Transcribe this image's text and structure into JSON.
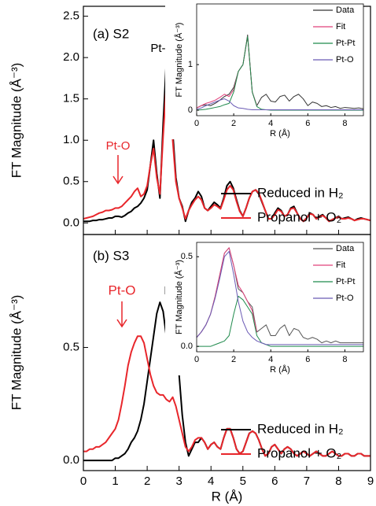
{
  "chart_data": [
    {
      "type": "line",
      "ylabel": "FT Magnitude (Å⁻³)",
      "legend": "right",
      "annotations": [
        {
          "text": "(a) S2",
          "color": "#000000"
        },
        {
          "text": "Pt-Pt",
          "color": "#000000"
        },
        {
          "text": "Pt-O",
          "color": "#e8262b"
        }
      ],
      "x": [
        0,
        0.1,
        0.2,
        0.3,
        0.4,
        0.5,
        0.6,
        0.7,
        0.8,
        0.9,
        1,
        1.1,
        1.2,
        1.3,
        1.4,
        1.5,
        1.6,
        1.7,
        1.8,
        1.9,
        2,
        2.1,
        2.2,
        2.3,
        2.4,
        2.5,
        2.6,
        2.7,
        2.8,
        2.9,
        3,
        3.1,
        3.2,
        3.3,
        3.4,
        3.5,
        3.6,
        3.7,
        3.8,
        3.9,
        4,
        4.1,
        4.2,
        4.3,
        4.4,
        4.5,
        4.6,
        4.7,
        4.8,
        4.9,
        5,
        5.1,
        5.2,
        5.3,
        5.4,
        5.5,
        5.6,
        5.7,
        5.8,
        5.9,
        6,
        6.1,
        6.2,
        6.3,
        6.4,
        6.5,
        6.6,
        6.7,
        6.8,
        6.9,
        7,
        7.1,
        7.2,
        7.3,
        7.4,
        7.5,
        7.6,
        7.7,
        7.8,
        7.9,
        8,
        8.1,
        8.2,
        8.3,
        8.4,
        8.5,
        8.6,
        8.7,
        8.8,
        8.9,
        9
      ],
      "series": [
        {
          "name": "Reduced in H₂",
          "color": "#000000",
          "values": [
            0.02,
            0.02,
            0.02,
            0.03,
            0.03,
            0.04,
            0.04,
            0.05,
            0.06,
            0.06,
            0.08,
            0.08,
            0.07,
            0.09,
            0.12,
            0.14,
            0.18,
            0.2,
            0.24,
            0.3,
            0.4,
            0.7,
            1.0,
            0.6,
            0.3,
            1.2,
            1.95,
            1.7,
            1.1,
            0.55,
            0.3,
            0.2,
            0.02,
            0.15,
            0.25,
            0.3,
            0.38,
            0.32,
            0.18,
            0.15,
            0.2,
            0.25,
            0.22,
            0.18,
            0.3,
            0.45,
            0.5,
            0.42,
            0.28,
            0.15,
            0.08,
            0.18,
            0.3,
            0.38,
            0.4,
            0.35,
            0.25,
            0.15,
            0.05,
            0.05,
            0.12,
            0.18,
            0.15,
            0.08,
            0.1,
            0.18,
            0.2,
            0.12,
            0.05,
            0.02,
            0.06,
            0.12,
            0.1,
            0.05,
            0.08,
            0.1,
            0.06,
            0.02,
            0.04,
            0.06,
            0.08,
            0.05,
            0.06,
            0.07,
            0.05,
            0.03,
            0.05,
            0.06,
            0.05,
            0.04,
            0.03
          ]
        },
        {
          "name": "Propanol + O₂",
          "color": "#e8262b",
          "values": [
            0.05,
            0.06,
            0.07,
            0.08,
            0.1,
            0.12,
            0.13,
            0.15,
            0.15,
            0.16,
            0.18,
            0.18,
            0.2,
            0.24,
            0.28,
            0.32,
            0.38,
            0.42,
            0.32,
            0.35,
            0.45,
            0.7,
            0.9,
            0.55,
            0.35,
            1.05,
            1.65,
            1.5,
            1.0,
            0.5,
            0.3,
            0.18,
            0.05,
            0.15,
            0.22,
            0.28,
            0.32,
            0.28,
            0.18,
            0.15,
            0.18,
            0.22,
            0.2,
            0.17,
            0.28,
            0.4,
            0.45,
            0.4,
            0.26,
            0.14,
            0.08,
            0.18,
            0.3,
            0.38,
            0.4,
            0.36,
            0.26,
            0.15,
            0.05,
            0.05,
            0.1,
            0.16,
            0.14,
            0.08,
            0.1,
            0.17,
            0.18,
            0.12,
            0.05,
            0.02,
            0.06,
            0.11,
            0.1,
            0.05,
            0.07,
            0.09,
            0.06,
            0.02,
            0.04,
            0.06,
            0.07,
            0.05,
            0.05,
            0.06,
            0.05,
            0.03,
            0.04,
            0.05,
            0.05,
            0.04,
            0.03
          ]
        }
      ],
      "xlim": [
        0,
        9
      ],
      "ylim": [
        -0.14,
        2.62
      ],
      "xticks": [
        0,
        1,
        2,
        3,
        4,
        5,
        6,
        7,
        8,
        9
      ],
      "yticks": [
        {
          "value": 0,
          "label": "0.0"
        },
        0.5,
        {
          "value": 1,
          "label": "1.0"
        },
        1.5,
        {
          "value": 2,
          "label": "2.0"
        },
        2.5
      ]
    },
    {
      "type": "line",
      "xlabel": "R (Å)",
      "ylabel": "FT Magnitude (Å⁻³)",
      "legend": "upper right",
      "x": [
        0,
        0.25,
        0.5,
        0.75,
        1,
        1.25,
        1.5,
        1.75,
        2,
        2.25,
        2.5,
        2.75,
        3,
        3.25,
        3.5,
        3.75,
        4,
        4.25,
        4.5,
        4.75,
        5,
        5.25,
        5.5,
        5.75,
        6,
        6.25,
        6.5,
        6.75,
        7,
        7.25,
        7.5,
        7.75,
        8,
        8.25,
        8.5,
        8.75,
        9
      ],
      "series": [
        {
          "name": "Data",
          "color": "#333333",
          "values": [
            0.05,
            0.1,
            0.12,
            0.1,
            0.15,
            0.22,
            0.3,
            0.35,
            0.5,
            0.85,
            1.0,
            1.65,
            0.4,
            0.1,
            0.28,
            0.35,
            0.2,
            0.18,
            0.3,
            0.33,
            0.2,
            0.3,
            0.35,
            0.25,
            0.1,
            0.18,
            0.15,
            0.08,
            0.1,
            0.06,
            0.08,
            0.04,
            0.06,
            0.05,
            0.04,
            0.05,
            0.03
          ]
        },
        {
          "name": "Fit",
          "color": "#e0407a",
          "values": [
            0.05,
            0.1,
            0.15,
            0.18,
            0.22,
            0.28,
            0.35,
            0.3,
            0.45,
            0.85,
            1.0,
            1.62,
            0.4,
            0.1,
            null,
            null,
            null,
            null,
            null,
            null,
            null,
            null,
            null,
            null,
            null,
            null,
            null,
            null,
            null,
            null,
            null,
            null,
            null,
            null,
            null,
            null,
            null
          ]
        },
        {
          "name": "Pt-Pt",
          "color": "#1f8a4c",
          "values": [
            0,
            0.01,
            0.02,
            0.04,
            0.06,
            0.08,
            0.12,
            0.15,
            0.4,
            0.85,
            1.0,
            1.62,
            0.4,
            0.08,
            0.02,
            0.01,
            0,
            0,
            0,
            0,
            0,
            0,
            0,
            0,
            0,
            0,
            0,
            0,
            0,
            0,
            0,
            0,
            0,
            0,
            0,
            0,
            0
          ]
        },
        {
          "name": "Pt-O",
          "color": "#6b5bb5",
          "values": [
            0.02,
            0.05,
            0.1,
            0.14,
            0.18,
            0.22,
            0.25,
            0.2,
            0.1,
            0.05,
            0.04,
            0.02,
            0.01,
            0.01,
            0.01,
            0.01,
            0.01,
            0.01,
            0.01,
            0.01,
            0.01,
            0.01,
            0.01,
            0.01,
            0.01,
            0.01,
            0.01,
            0.01,
            0.01,
            0.01,
            0.01,
            0.01,
            0.01,
            0.01,
            0.01,
            0.01,
            0.01
          ]
        }
      ],
      "xlim": [
        0,
        9
      ],
      "ylim": [
        -0.12,
        2.33
      ],
      "xticks": [
        0,
        2,
        4,
        6,
        8
      ],
      "yticks": [
        0,
        1
      ]
    },
    {
      "type": "line",
      "xlabel": "R (Å)",
      "ylabel": "FT Magnitude (Å⁻³)",
      "legend": "right",
      "annotations": [
        {
          "text": "(b) S3",
          "color": "#000000"
        },
        {
          "text": "Pt-O",
          "color": "#e8262b"
        },
        {
          "text": "Pt-Pt",
          "color": "#000000"
        }
      ],
      "x": [
        0,
        0.1,
        0.2,
        0.3,
        0.4,
        0.5,
        0.6,
        0.7,
        0.8,
        0.9,
        1,
        1.1,
        1.2,
        1.3,
        1.4,
        1.5,
        1.6,
        1.7,
        1.8,
        1.9,
        2,
        2.1,
        2.2,
        2.3,
        2.4,
        2.5,
        2.6,
        2.7,
        2.8,
        2.9,
        3,
        3.1,
        3.2,
        3.3,
        3.4,
        3.5,
        3.6,
        3.7,
        3.8,
        3.9,
        4,
        4.1,
        4.2,
        4.3,
        4.4,
        4.5,
        4.6,
        4.7,
        4.8,
        4.9,
        5,
        5.1,
        5.2,
        5.3,
        5.4,
        5.5,
        5.6,
        5.7,
        5.8,
        5.9,
        6,
        6.1,
        6.2,
        6.3,
        6.4,
        6.5,
        6.6,
        6.7,
        6.8,
        6.9,
        7,
        7.1,
        7.2,
        7.3,
        7.4,
        7.5,
        7.6,
        7.7,
        7.8,
        7.9,
        8,
        8.1,
        8.2,
        8.3,
        8.4,
        8.5,
        8.6,
        8.7,
        8.8,
        8.9,
        9
      ],
      "series": [
        {
          "name": "Reduced in H₂",
          "color": "#000000",
          "values": [
            0,
            0,
            0,
            0,
            0,
            0,
            0,
            0,
            0,
            0,
            0.01,
            0.01,
            0.02,
            0.03,
            0.05,
            0.08,
            0.1,
            0.13,
            0.18,
            0.25,
            0.35,
            0.45,
            0.55,
            0.65,
            0.7,
            0.66,
            0.55,
            0.45,
            0.45,
            0.48,
            0.38,
            0.2,
            0.08,
            0.02,
            0.05,
            0.08,
            0.08,
            0.1,
            0.08,
            0.05,
            0.07,
            0.08,
            0.06,
            0.05,
            0.1,
            0.14,
            0.14,
            0.1,
            0.05,
            0.03,
            0.04,
            0.08,
            0.12,
            0.13,
            0.12,
            0.09,
            0.05,
            0.02,
            0.03,
            0.06,
            0.07,
            0.05,
            0.03,
            0.05,
            0.06,
            0.05,
            0.03,
            0.02,
            0.03,
            0.04,
            0.03,
            0.02,
            0.03,
            0.04,
            0.03,
            0.02,
            0.02,
            0.03,
            0.04,
            0.03,
            0.02,
            0.02,
            0.03,
            0.03,
            0.02,
            0.02,
            0.03,
            0.03,
            0.02,
            0.02,
            0.02
          ]
        },
        {
          "name": "Propanol + O₂",
          "color": "#e8262b",
          "values": [
            0.04,
            0.04,
            0.05,
            0.05,
            0.06,
            0.06,
            0.07,
            0.08,
            0.1,
            0.12,
            0.14,
            0.18,
            0.25,
            0.33,
            0.42,
            0.48,
            0.52,
            0.55,
            0.55,
            0.52,
            0.45,
            0.38,
            0.33,
            0.3,
            0.29,
            0.29,
            0.27,
            0.26,
            0.28,
            0.24,
            0.18,
            0.12,
            0.06,
            0.04,
            0.06,
            0.09,
            0.1,
            0.1,
            0.08,
            0.05,
            0.07,
            0.08,
            0.06,
            0.05,
            0.1,
            0.14,
            0.14,
            0.1,
            0.05,
            0.03,
            0.04,
            0.08,
            0.12,
            0.13,
            0.12,
            0.09,
            0.05,
            0.02,
            0.03,
            0.06,
            0.07,
            0.05,
            0.03,
            0.05,
            0.06,
            0.05,
            0.03,
            0.02,
            0.03,
            0.04,
            0.03,
            0.02,
            0.03,
            0.04,
            0.03,
            0.02,
            0.02,
            0.03,
            0.04,
            0.03,
            0.02,
            0.02,
            0.03,
            0.03,
            0.02,
            0.02,
            0.03,
            0.03,
            0.02,
            0.02,
            0.02
          ]
        }
      ],
      "xlim": [
        0,
        9
      ],
      "ylim": [
        -0.045,
        1.0
      ],
      "xticks": [
        0,
        1,
        2,
        3,
        4,
        5,
        6,
        7,
        8,
        9
      ],
      "yticks": [
        {
          "value": 0,
          "label": "0.0"
        },
        0.5
      ]
    },
    {
      "type": "line",
      "xlabel": "R (Å)",
      "ylabel": "FT Magnitude (Å⁻³)",
      "legend": "upper right",
      "x": [
        0,
        0.25,
        0.5,
        0.75,
        1,
        1.25,
        1.5,
        1.75,
        2,
        2.25,
        2.5,
        2.75,
        3,
        3.25,
        3.5,
        3.75,
        4,
        4.25,
        4.5,
        4.75,
        5,
        5.25,
        5.5,
        5.75,
        6,
        6.25,
        6.5,
        6.75,
        7,
        7.25,
        7.5,
        7.75,
        8,
        8.25,
        8.5,
        8.75,
        9
      ],
      "series": [
        {
          "name": "Data",
          "color": "#555555",
          "values": [
            0.05,
            0.08,
            0.12,
            0.18,
            0.28,
            0.4,
            0.52,
            0.55,
            0.45,
            0.32,
            0.3,
            0.25,
            0.22,
            0.08,
            0.1,
            0.12,
            0.06,
            0.06,
            0.1,
            0.12,
            0.06,
            0.1,
            0.09,
            0.05,
            0.04,
            0.05,
            0.04,
            0.02,
            0.03,
            0.02,
            0.03,
            0.02,
            0.02,
            0.02,
            0.02,
            0.02,
            0.02
          ]
        },
        {
          "name": "Fit",
          "color": "#e0407a",
          "values": [
            0.05,
            0.08,
            0.12,
            0.18,
            0.28,
            0.4,
            0.52,
            0.55,
            0.45,
            0.34,
            0.3,
            0.25,
            0.2,
            0.08,
            null,
            null,
            null,
            null,
            null,
            null,
            null,
            null,
            null,
            null,
            null,
            null,
            null,
            null,
            null,
            null,
            null,
            null,
            null,
            null,
            null,
            null,
            null
          ]
        },
        {
          "name": "Pt-Pt",
          "color": "#1f8a4c",
          "values": [
            0,
            0,
            0,
            0,
            0.01,
            0.02,
            0.03,
            0.06,
            0.18,
            0.28,
            0.26,
            0.22,
            0.18,
            0.06,
            0.02,
            0.01,
            0,
            0,
            0,
            0,
            0,
            0,
            0,
            0,
            0,
            0,
            0,
            0,
            0,
            0,
            0,
            0,
            0,
            0,
            0,
            0,
            0
          ]
        },
        {
          "name": "Pt-O",
          "color": "#6b5bb5",
          "values": [
            0.05,
            0.08,
            0.12,
            0.18,
            0.27,
            0.38,
            0.5,
            0.53,
            0.4,
            0.25,
            0.14,
            0.08,
            0.05,
            0.03,
            0.02,
            0.01,
            0.01,
            0.01,
            0.01,
            0.01,
            0.01,
            0.01,
            0.01,
            0.01,
            0.01,
            0.01,
            0.01,
            0.01,
            0.01,
            0.01,
            0.01,
            0.01,
            0.01,
            0.01,
            0.01,
            0.01,
            0.01
          ]
        }
      ],
      "xlim": [
        0,
        9
      ],
      "ylim": [
        -0.03,
        0.58
      ],
      "xticks": [
        0,
        2,
        4,
        6,
        8
      ],
      "yticks": [
        {
          "value": 0,
          "label": "0.0"
        },
        0.5
      ]
    }
  ]
}
